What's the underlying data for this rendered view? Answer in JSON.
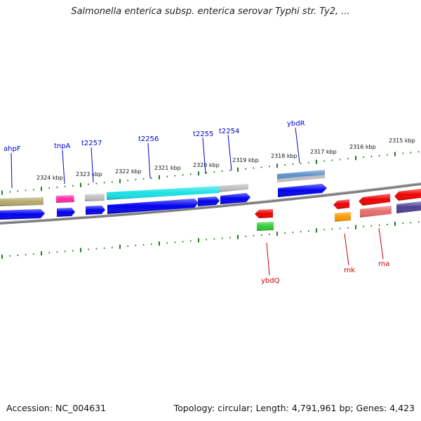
{
  "title": "Salmonella enterica subsp. enterica serovar Typhi str. Ty2, ...",
  "footer": {
    "accession": "Accession: NC_004631",
    "topology": "Topology: circular; Length: 4,791,961 bp; Genes: 4,423"
  },
  "colors": {
    "backbone": "#7f7f7f",
    "tick": "#1e7a1e",
    "forward_label": "#0000cc",
    "reverse_label": "#cc0000"
  },
  "scale": {
    "ticks": [
      {
        "label": "2324 kbp"
      },
      {
        "label": "2323 kbp"
      },
      {
        "label": "2322 kbp"
      },
      {
        "label": "2321 kbp"
      },
      {
        "label": "2320 kbp"
      },
      {
        "label": "2319 kbp"
      },
      {
        "label": "2318 kbp"
      },
      {
        "label": "2317 kbp"
      },
      {
        "label": "2316 kbp"
      },
      {
        "label": "2315 kbp"
      }
    ]
  },
  "genes": {
    "forward": [
      {
        "name": "ahpF",
        "color": "#b4a96b"
      },
      {
        "name": "tnpA",
        "color": "#ff2aa8"
      },
      {
        "name": "t2257",
        "color": "#bfbfbf"
      },
      {
        "name": "t2256",
        "color": "#18e2e6"
      },
      {
        "name": "t2255",
        "color": "#bfbfbf"
      },
      {
        "name": "t2254",
        "color": "#bfbfbf"
      },
      {
        "name": "ybdR",
        "color": "#5b8fc9"
      }
    ],
    "reverse": [
      {
        "name": "ybdQ",
        "color": "#ee0000"
      },
      {
        "name": "rnk",
        "color": "#ee0000"
      },
      {
        "name": "rna",
        "color": "#ee0000"
      }
    ]
  }
}
